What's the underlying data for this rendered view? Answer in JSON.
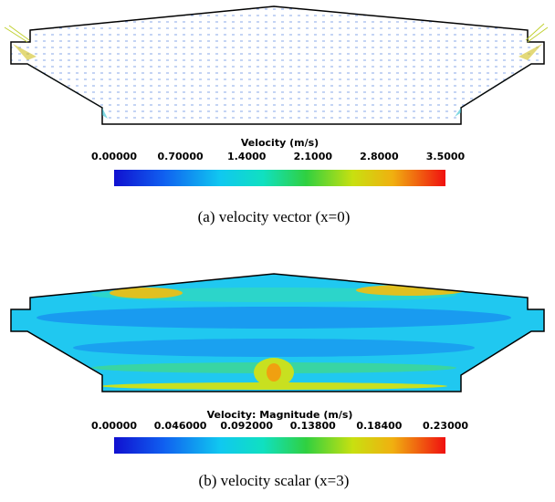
{
  "panels": [
    {
      "colorbar": {
        "title": "Velocity (m/s)",
        "ticks": [
          "0.00000",
          "0.70000",
          "1.4000",
          "2.1000",
          "2.8000",
          "3.5000"
        ]
      },
      "caption": "(a) velocity vector (x=0)"
    },
    {
      "colorbar": {
        "title": "Velocity: Magnitude (m/s)",
        "ticks": [
          "0.00000",
          "0.046000",
          "0.092000",
          "0.13800",
          "0.18400",
          "0.23000"
        ]
      },
      "caption": "(b) velocity scalar (x=3)"
    }
  ]
}
